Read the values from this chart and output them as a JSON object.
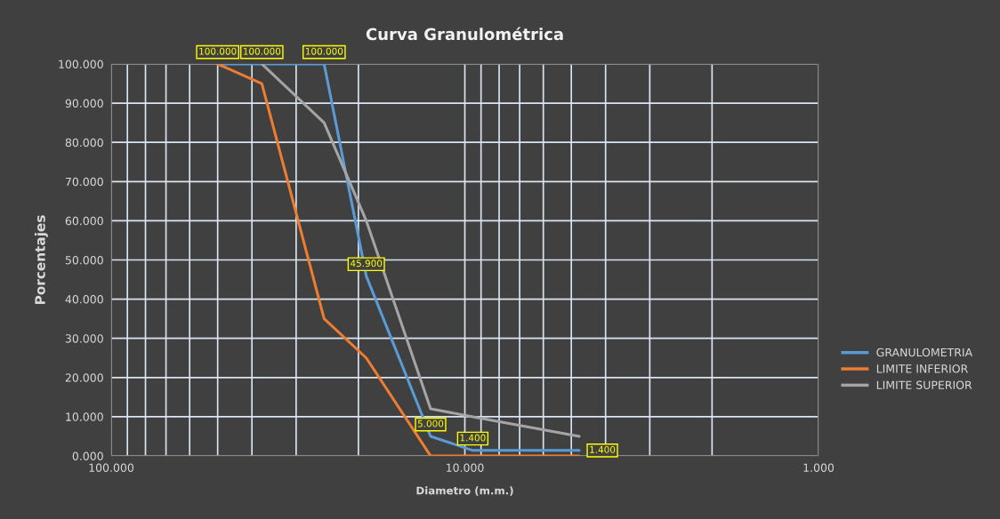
{
  "chart_data": {
    "type": "line",
    "title": "Curva Granulométrica",
    "xlabel": "Diametro (m.m.)",
    "ylabel": "Porcentajes",
    "x": [
      50,
      37.5,
      25,
      19,
      12.5,
      9.5,
      4.75
    ],
    "series": [
      {
        "name": "GRANULOMETRIA",
        "color": "#5b9bd5",
        "values": [
          100,
          100,
          100,
          45.9,
          5.0,
          1.4,
          1.4
        ],
        "value_labels": [
          "100.000",
          "100.000",
          "100.000",
          "45.900",
          "5.000",
          "1.400",
          "1.400"
        ]
      },
      {
        "name": "LIMITE INFERIOR",
        "color": "#ed7d31",
        "values": [
          100,
          95,
          35,
          25,
          0,
          0,
          0
        ]
      },
      {
        "name": "LIMITE SUPERIOR",
        "color": "#a5a5a5",
        "values": [
          null,
          100,
          85,
          60,
          12,
          10,
          5
        ]
      }
    ],
    "log": "x",
    "xlim": [
      100,
      1
    ],
    "xticks": [
      {
        "value": 100,
        "label": "100.000"
      },
      {
        "value": 90,
        "label": null
      },
      {
        "value": 80,
        "label": null
      },
      {
        "value": 70,
        "label": null
      },
      {
        "value": 60,
        "label": null
      },
      {
        "value": 50,
        "label": null
      },
      {
        "value": 40,
        "label": null
      },
      {
        "value": 30,
        "label": null
      },
      {
        "value": 20,
        "label": null
      },
      {
        "value": 10,
        "label": "10.000"
      },
      {
        "value": 9,
        "label": null
      },
      {
        "value": 8,
        "label": null
      },
      {
        "value": 7,
        "label": null
      },
      {
        "value": 6,
        "label": null
      },
      {
        "value": 5,
        "label": null
      },
      {
        "value": 4,
        "label": null
      },
      {
        "value": 3,
        "label": null
      },
      {
        "value": 2,
        "label": null
      },
      {
        "value": 1,
        "label": "1.000"
      }
    ],
    "ylim": [
      0,
      100
    ],
    "yticks": [
      {
        "value": 0,
        "label": "0.000"
      },
      {
        "value": 10,
        "label": "10.000"
      },
      {
        "value": 20,
        "label": "20.000"
      },
      {
        "value": 30,
        "label": "30.000"
      },
      {
        "value": 40,
        "label": "40.000"
      },
      {
        "value": 50,
        "label": "50.000"
      },
      {
        "value": 60,
        "label": "60.000"
      },
      {
        "value": 70,
        "label": "70.000"
      },
      {
        "value": 80,
        "label": "80.000"
      },
      {
        "value": 90,
        "label": "90.000"
      },
      {
        "value": 100,
        "label": "100.000"
      }
    ],
    "grid": true,
    "legend": "right",
    "marker": "none",
    "line_style": "solid"
  }
}
